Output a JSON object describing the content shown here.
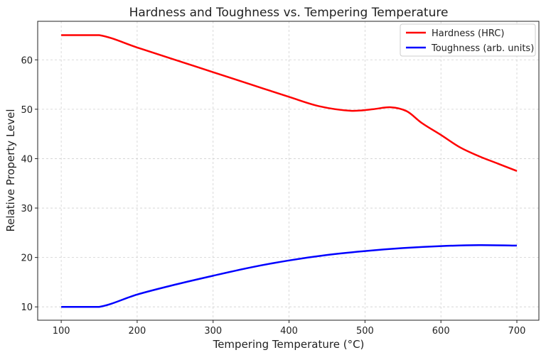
{
  "chart_data": {
    "type": "line",
    "title": "Hardness and Toughness vs. Tempering Temperature",
    "xlabel": "Tempering Temperature (°C)",
    "ylabel": "Relative Property Level",
    "xlim": [
      69,
      729
    ],
    "ylim": [
      7.3,
      67.8
    ],
    "xticks": [
      100,
      200,
      300,
      400,
      500,
      600,
      700
    ],
    "yticks": [
      10,
      20,
      30,
      40,
      50,
      60
    ],
    "grid": true,
    "legend_position": "top-right",
    "series": [
      {
        "name": "Hardness (HRC)",
        "color": "#ff0000",
        "x": [
          100,
          150,
          200,
          250,
          300,
          350,
          400,
          440,
          481,
          510,
          534,
          555,
          575,
          600,
          625,
          650,
          675,
          700
        ],
        "y": [
          65,
          65,
          62.5,
          60,
          57.5,
          55,
          52.5,
          50.6,
          49.7,
          50.0,
          50.4,
          49.6,
          47.2,
          44.8,
          42.3,
          40.5,
          39.0,
          37.5
        ]
      },
      {
        "name": "Toughness (arb. units)",
        "color": "#0000ff",
        "x": [
          100,
          150,
          200,
          250,
          300,
          350,
          400,
          450,
          500,
          550,
          600,
          650,
          700
        ],
        "y": [
          10,
          10,
          12.5,
          14.5,
          16.3,
          18.0,
          19.4,
          20.5,
          21.3,
          21.9,
          22.3,
          22.5,
          22.4
        ]
      }
    ]
  }
}
